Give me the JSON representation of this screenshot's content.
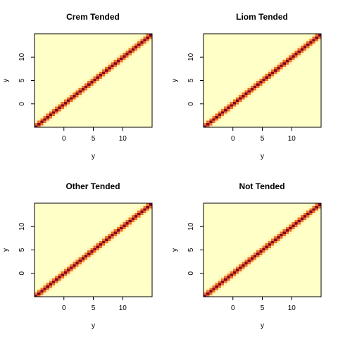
{
  "chart_data": [
    {
      "type": "heatmap",
      "title": "Crem Tended",
      "xlabel": "y",
      "ylabel": "y",
      "xlim": [
        -5,
        15
      ],
      "ylim": [
        -5,
        15
      ],
      "xticks": [
        0,
        5,
        10
      ],
      "yticks": [
        0,
        5,
        10
      ],
      "grid": false,
      "n_cells": 40,
      "band_sigma": 0.9,
      "colors": [
        "#ffffc8",
        "#ffe38b",
        "#fcac45",
        "#e6541e",
        "#b8131d",
        "#800026"
      ]
    },
    {
      "type": "heatmap",
      "title": "Liom Tended",
      "xlabel": "y",
      "ylabel": "y",
      "xlim": [
        -5,
        15
      ],
      "ylim": [
        -5,
        15
      ],
      "xticks": [
        0,
        5,
        10
      ],
      "yticks": [
        0,
        5,
        10
      ],
      "grid": false,
      "n_cells": 40,
      "band_sigma": 0.9,
      "colors": [
        "#ffffc8",
        "#ffe38b",
        "#fcac45",
        "#e6541e",
        "#b8131d",
        "#800026"
      ]
    },
    {
      "type": "heatmap",
      "title": "Other Tended",
      "xlabel": "y",
      "ylabel": "y",
      "xlim": [
        -5,
        15
      ],
      "ylim": [
        -5,
        15
      ],
      "xticks": [
        0,
        5,
        10
      ],
      "yticks": [
        0,
        5,
        10
      ],
      "grid": false,
      "n_cells": 40,
      "band_sigma": 0.9,
      "colors": [
        "#ffffc8",
        "#ffe38b",
        "#fcac45",
        "#e6541e",
        "#b8131d",
        "#800026"
      ]
    },
    {
      "type": "heatmap",
      "title": "Not Tended",
      "xlabel": "y",
      "ylabel": "y",
      "xlim": [
        -5,
        15
      ],
      "ylim": [
        -5,
        15
      ],
      "xticks": [
        0,
        5,
        10
      ],
      "yticks": [
        0,
        5,
        10
      ],
      "grid": false,
      "n_cells": 40,
      "band_sigma": 0.9,
      "colors": [
        "#ffffc8",
        "#ffe38b",
        "#fcac45",
        "#e6541e",
        "#b8131d",
        "#800026"
      ]
    }
  ]
}
